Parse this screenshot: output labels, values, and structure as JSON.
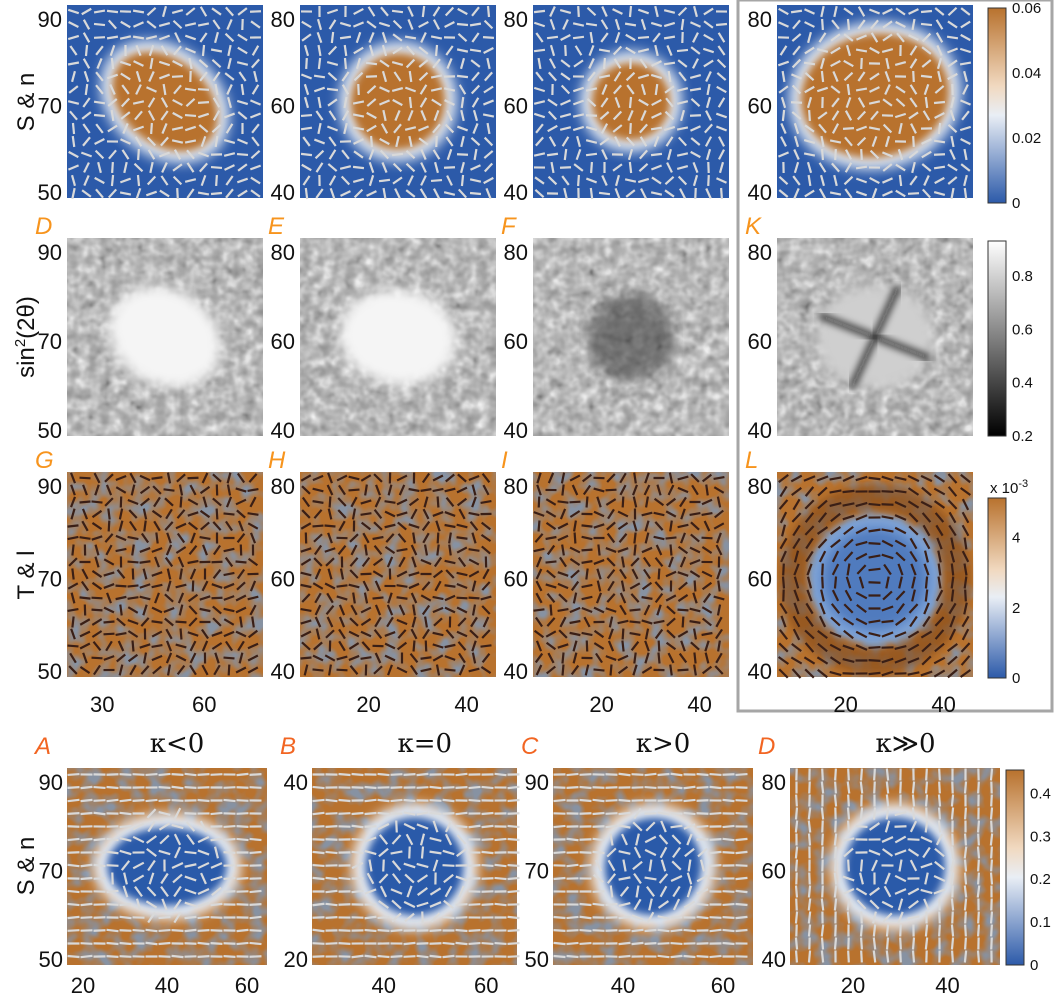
{
  "colors": {
    "blue": "#2c5aa9",
    "white": "#f2f2f2",
    "brown": "#b8722e",
    "letter_orange": "#f7941d",
    "letter_red": "#f26522",
    "rod_light": "#d9d9d9",
    "rod_dark": "#3a1f16",
    "frame_gray": "#a6a6a6"
  },
  "row_labels": {
    "row1": "S & n",
    "row2": "sin",
    "row2_sup": "2",
    "row2_arg": "(2θ)",
    "row3": "T & l",
    "row4": "S & n"
  },
  "colorbar_labels": {
    "cb1": [
      "0.06",
      "0.04",
      "0.02",
      "0"
    ],
    "cb2": [
      "0.8",
      "0.6",
      "0.4",
      "0.2"
    ],
    "cb3": [
      "4",
      "2",
      "0"
    ],
    "cb3_exp": "x 10",
    "cb3_exp_sup": "-3",
    "cb4": [
      "0.4",
      "0.3",
      "0.2",
      "0.1",
      "0"
    ]
  },
  "chart_data": [
    {
      "type": "heatmap",
      "panel": "top-1",
      "row": "S & n",
      "yticks": [
        "90",
        "70",
        "50"
      ],
      "xticks": [],
      "field": "order parameter S",
      "defect": "isotropic droplet",
      "center": [
        0.5,
        0.5
      ],
      "radii": [
        0.3,
        0.22
      ],
      "rotation": 40,
      "colorbar_range": [
        0,
        0.06
      ]
    },
    {
      "type": "heatmap",
      "panel": "top-2",
      "row": "S & n",
      "yticks": [
        "80",
        "60",
        "40"
      ],
      "xticks": [],
      "center": [
        0.5,
        0.5
      ],
      "radii": [
        0.24,
        0.25
      ],
      "rotation": 20,
      "colorbar_range": [
        0,
        0.06
      ]
    },
    {
      "type": "heatmap",
      "panel": "top-3",
      "row": "S & n",
      "yticks": [
        "80",
        "60",
        "40"
      ],
      "xticks": [],
      "center": [
        0.5,
        0.5
      ],
      "radii": [
        0.2,
        0.2
      ],
      "rotation": 0,
      "colorbar_range": [
        0,
        0.06
      ]
    },
    {
      "type": "heatmap",
      "panel": "top-4",
      "row": "S & n",
      "yticks": [
        "80",
        "60",
        "40"
      ],
      "xticks": [],
      "center": [
        0.5,
        0.47
      ],
      "radii": [
        0.38,
        0.32
      ],
      "rotation": -10,
      "colorbar_range": [
        0,
        0.06
      ]
    },
    {
      "type": "heatmap",
      "panel": "D",
      "label": "D",
      "row": "sin^2(2θ)",
      "yticks": [
        "90",
        "70",
        "50"
      ],
      "xticks": [],
      "colorbar_range": [
        0,
        0.95
      ]
    },
    {
      "type": "heatmap",
      "panel": "E",
      "label": "E",
      "row": "sin^2(2θ)",
      "yticks": [
        "80",
        "60",
        "40"
      ],
      "xticks": [],
      "colorbar_range": [
        0,
        0.95
      ]
    },
    {
      "type": "heatmap",
      "panel": "F",
      "label": "F",
      "row": "sin^2(2θ)",
      "yticks": [
        "80",
        "60",
        "40"
      ],
      "xticks": [],
      "colorbar_range": [
        0,
        0.95
      ]
    },
    {
      "type": "heatmap",
      "panel": "K",
      "label": "K",
      "row": "sin^2(2θ)",
      "yticks": [
        "80",
        "60",
        "40"
      ],
      "xticks": [],
      "colorbar_range": [
        0,
        0.95
      ]
    },
    {
      "type": "heatmap",
      "panel": "G",
      "label": "G",
      "row": "T & l",
      "yticks": [
        "90",
        "70",
        "50"
      ],
      "xticks": [
        "30",
        "60"
      ],
      "colorbar_range": [
        0,
        0.005
      ]
    },
    {
      "type": "heatmap",
      "panel": "H",
      "label": "H",
      "row": "T & l",
      "yticks": [
        "80",
        "60",
        "40"
      ],
      "xticks": [
        "20",
        "40"
      ],
      "colorbar_range": [
        0,
        0.005
      ]
    },
    {
      "type": "heatmap",
      "panel": "I",
      "label": "I",
      "row": "T & l",
      "yticks": [
        "80",
        "60",
        "40"
      ],
      "xticks": [
        "20",
        "40"
      ],
      "colorbar_range": [
        0,
        0.005
      ]
    },
    {
      "type": "heatmap",
      "panel": "L",
      "label": "L",
      "row": "T & l",
      "yticks": [
        "80",
        "60",
        "40"
      ],
      "xticks": [
        "20",
        "40"
      ],
      "colorbar_range": [
        0,
        0.005
      ]
    },
    {
      "type": "heatmap",
      "panel": "A",
      "label": "A",
      "title": "κ<0",
      "row": "S & n",
      "yticks": [
        "90",
        "70",
        "50"
      ],
      "xticks": [
        "20",
        "40",
        "60"
      ],
      "colorbar_range": [
        0,
        0.45
      ]
    },
    {
      "type": "heatmap",
      "panel": "B",
      "label": "B",
      "title": "κ=0",
      "row": "S & n",
      "yticks": [
        "40",
        "20"
      ],
      "xticks": [
        "40",
        "60"
      ],
      "colorbar_range": [
        0,
        0.45
      ]
    },
    {
      "type": "heatmap",
      "panel": "C",
      "label": "C",
      "title": "κ>0",
      "row": "S & n",
      "yticks": [
        "90",
        "70",
        "50"
      ],
      "xticks": [
        "40",
        "60"
      ],
      "colorbar_range": [
        0,
        0.45
      ]
    },
    {
      "type": "heatmap",
      "panel": "D2",
      "label": "D",
      "title": "κ≫0",
      "row": "S & n",
      "yticks": [
        "80",
        "60",
        "40"
      ],
      "xticks": [
        "20",
        "40"
      ],
      "colorbar_range": [
        0,
        0.45
      ]
    }
  ]
}
